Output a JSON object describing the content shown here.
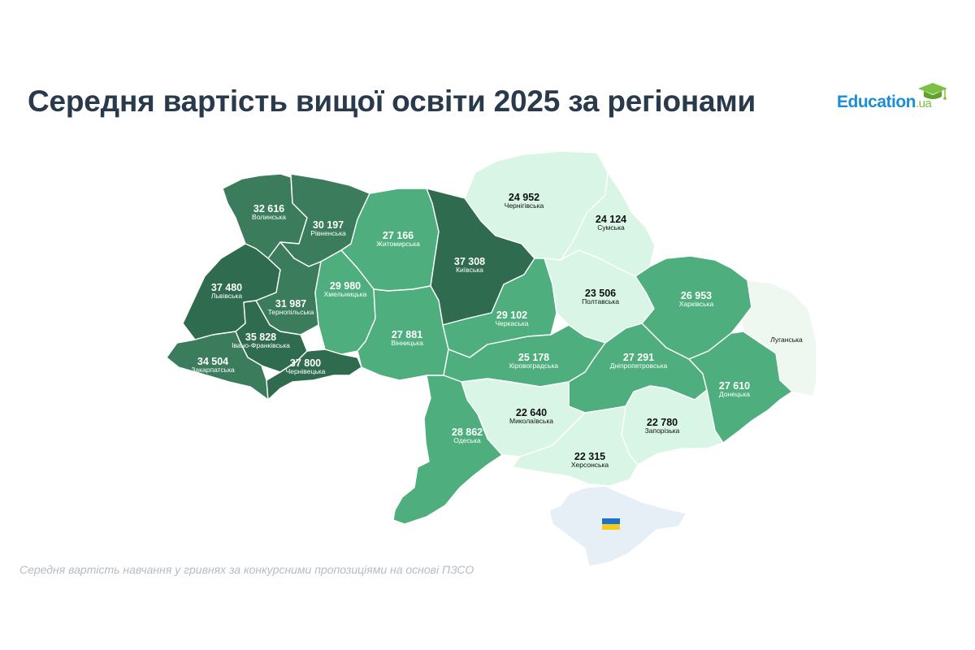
{
  "title": "Середня вартість вищої освіти 2025 за регіонами",
  "logo": {
    "main": "Education",
    "suffix": ".ua"
  },
  "footnote": "Середня вартість навчання у гривнях за конкурсними пропозиціями на основі ПЗСО",
  "colors": {
    "darkest": "#2f6b4e",
    "dark": "#3a7c5c",
    "medium": "#4fae7e",
    "light": "#d8f5e6",
    "nodata": "#eef8f1",
    "crimea": "#e6eef6"
  },
  "regions": {
    "volynska": {
      "value": "32 616",
      "name": "Волинська"
    },
    "rivnenska": {
      "value": "30 197",
      "name": "Рівненська"
    },
    "zhytomyrska": {
      "value": "27 166",
      "name": "Житомирська"
    },
    "kyivska": {
      "value": "37 308",
      "name": "Київська"
    },
    "chernihivska": {
      "value": "24 952",
      "name": "Чернігівська"
    },
    "sumska": {
      "value": "24 124",
      "name": "Сумська"
    },
    "lvivska": {
      "value": "37 480",
      "name": "Львівська"
    },
    "ternopilska": {
      "value": "31 987",
      "name": "Тернопільська"
    },
    "khmelnytska": {
      "value": "29 980",
      "name": "Хмельницька"
    },
    "ivano_frankivska": {
      "value": "35 828",
      "name": "Івано-Франківська"
    },
    "zakarpatska": {
      "value": "34 504",
      "name": "Закарпатська"
    },
    "chernivetska": {
      "value": "37 800",
      "name": "Чернівецька"
    },
    "vinnytska": {
      "value": "27 881",
      "name": "Вінницька"
    },
    "cherkaska": {
      "value": "29 102",
      "name": "Черкаська"
    },
    "poltavska": {
      "value": "23 506",
      "name": "Полтавська"
    },
    "kharkivska": {
      "value": "26 953",
      "name": "Харківська"
    },
    "luhanska": {
      "name": "Луганська"
    },
    "kirovohradska": {
      "value": "25 178",
      "name": "Кіровоградська"
    },
    "dnipropetrovska": {
      "value": "27 291",
      "name": "Дніпропетровська"
    },
    "donetska": {
      "value": "27 610",
      "name": "Донецька"
    },
    "mykolaivska": {
      "value": "22 640",
      "name": "Миколаївська"
    },
    "odeska": {
      "value": "28 862",
      "name": "Одеська"
    },
    "zaporizka": {
      "value": "22 780",
      "name": "Запорізька"
    },
    "khersonska": {
      "value": "22 315",
      "name": "Херсонська"
    }
  }
}
